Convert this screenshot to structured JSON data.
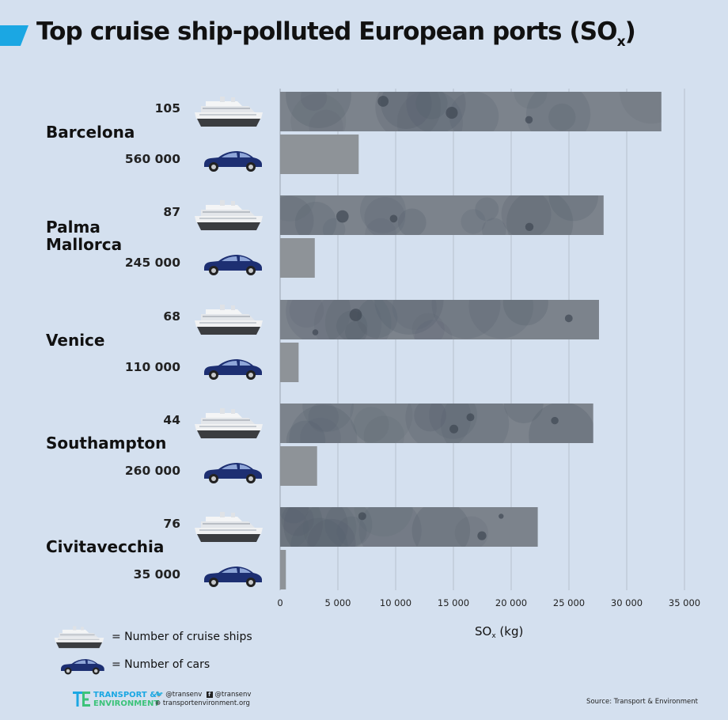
{
  "header": {
    "title_main": "Top cruise ship-polluted European ports (SO",
    "title_sub": "x",
    "title_end": ")"
  },
  "chart_data": {
    "type": "bar",
    "title": "Top cruise ship-polluted European ports (SOx)",
    "xlabel": "SOx (kg)",
    "xlim": [
      0,
      35000
    ],
    "xticks": [
      "0",
      "5 000",
      "10 000",
      "15 000",
      "20 000",
      "25 000",
      "30 000",
      "35 000"
    ],
    "grid": true,
    "orientation": "horizontal",
    "categories": [
      "Barcelona",
      "Palma Mallorca",
      "Venice",
      "Southampton",
      "Civitavecchia"
    ],
    "series": [
      {
        "name": "Number of cruise ships",
        "values": [
          33000,
          28000,
          27600,
          27100,
          22300
        ],
        "counts": [
          "105",
          "87",
          "68",
          "44",
          "76"
        ]
      },
      {
        "name": "Number of cars",
        "values": [
          6800,
          3000,
          1600,
          3200,
          500
        ],
        "counts": [
          "560 000",
          "245 000",
          "110 000",
          "260 000",
          "35 000"
        ]
      }
    ],
    "colors": {
      "ships": "#7c838c",
      "cars": "#8e9398",
      "car_icon": "#1d2f72",
      "grid": "#b6c0cc"
    }
  },
  "legend": {
    "ships_label": "= Number of cruise ships",
    "cars_label": "= Number of cars"
  },
  "axis": {
    "xlabel_main": "SO",
    "xlabel_sub": "x",
    "xlabel_end": " (kg)"
  },
  "footer": {
    "brand_line1": "TRANSPORT &",
    "brand_line2": "ENVIRONMENT",
    "twitter": "@transenv",
    "facebook": "@transenv",
    "website": "transportenvironment.org",
    "source": "Source: Transport & Environment"
  }
}
